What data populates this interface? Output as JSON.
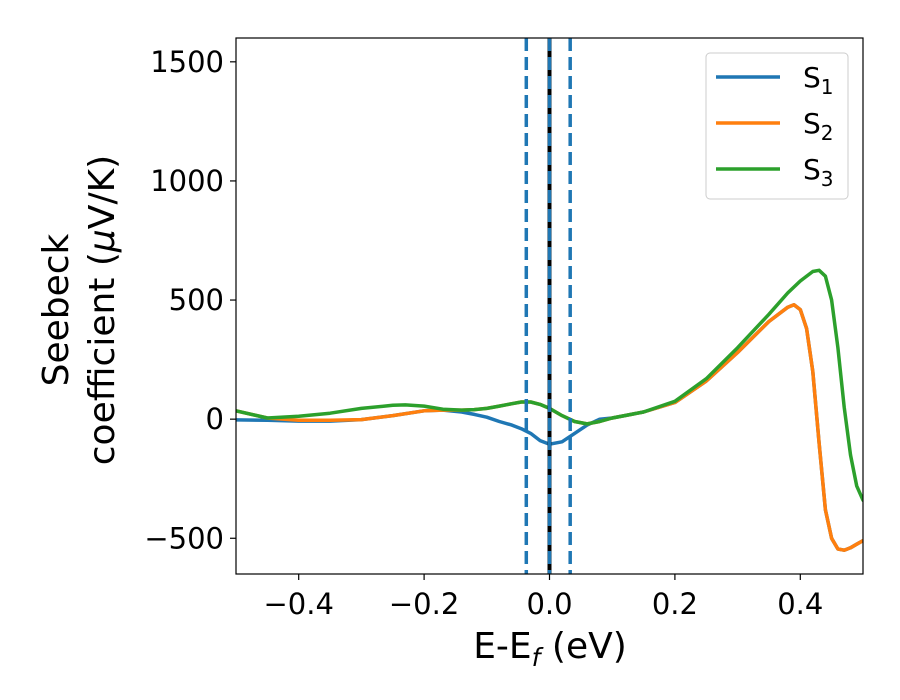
{
  "chart_data": {
    "type": "line",
    "xlabel": "E-E",
    "xlabel_sub": "f",
    "xlabel_unit": " (eV)",
    "ylabel_line1": "Seebeck",
    "ylabel_line2": "coefficient  (",
    "ylabel_mu": "μ",
    "ylabel_unit": "V/K)",
    "xlim": [
      -0.5,
      0.5
    ],
    "ylim": [
      -650,
      1600
    ],
    "xticks": [
      -0.4,
      -0.2,
      0.0,
      0.2,
      0.4
    ],
    "xtick_labels": [
      "−0.4",
      "−0.2",
      "0.0",
      "0.2",
      "0.4"
    ],
    "yticks": [
      -500,
      0,
      500,
      1000,
      1500
    ],
    "ytick_labels": [
      "−500",
      "0",
      "500",
      "1000",
      "1500"
    ],
    "legend_position": "top-right",
    "grid": false,
    "vlines": [
      {
        "x": -0.037,
        "style": "dashed",
        "color": "#1f77b4"
      },
      {
        "x": 0.0,
        "style": "solid",
        "color": "#000000"
      },
      {
        "x": 0.0,
        "style": "dashed",
        "color": "#1f77b4"
      },
      {
        "x": 0.033,
        "style": "dashed",
        "color": "#1f77b4"
      }
    ],
    "series": [
      {
        "name": "S",
        "sub": "1",
        "color": "#1f77b4",
        "x": [
          -0.5,
          -0.45,
          -0.4,
          -0.35,
          -0.3,
          -0.25,
          -0.2,
          -0.17,
          -0.14,
          -0.12,
          -0.1,
          -0.08,
          -0.06,
          -0.045,
          -0.03,
          -0.015,
          0.0,
          0.02,
          0.04,
          0.06,
          0.08,
          0.1,
          0.12,
          0.15,
          0.2,
          0.25,
          0.3,
          0.35,
          0.38,
          0.39,
          0.4,
          0.41,
          0.42,
          0.43,
          0.44,
          0.45,
          0.46,
          0.47,
          0.48,
          0.49,
          0.5
        ],
        "y": [
          -3,
          -5,
          -8,
          -8,
          -2,
          15,
          35,
          38,
          30,
          20,
          8,
          -10,
          -25,
          -40,
          -60,
          -90,
          -105,
          -95,
          -60,
          -25,
          0,
          5,
          15,
          30,
          70,
          160,
          280,
          410,
          470,
          480,
          460,
          380,
          200,
          -100,
          -380,
          -500,
          -545,
          -550,
          -540,
          -525,
          -510
        ]
      },
      {
        "name": "S",
        "sub": "2",
        "color": "#ff7f0e",
        "x": [
          -0.5,
          -0.45,
          -0.4,
          -0.35,
          -0.3,
          -0.25,
          -0.2,
          -0.17,
          -0.14,
          -0.12,
          -0.1,
          -0.08,
          -0.06,
          -0.045,
          -0.03,
          -0.015,
          0.0,
          0.02,
          0.04,
          0.06,
          0.08,
          0.1,
          0.12,
          0.15,
          0.2,
          0.25,
          0.3,
          0.35,
          0.38,
          0.39,
          0.4,
          0.41,
          0.42,
          0.43,
          0.44,
          0.45,
          0.46,
          0.47,
          0.48,
          0.49,
          0.5
        ],
        "y": [
          35,
          5,
          -5,
          -5,
          -2,
          15,
          35,
          38,
          38,
          40,
          45,
          55,
          65,
          72,
          72,
          62,
          45,
          15,
          -10,
          -20,
          -10,
          5,
          15,
          30,
          70,
          160,
          280,
          410,
          470,
          480,
          460,
          380,
          200,
          -100,
          -380,
          -500,
          -545,
          -550,
          -540,
          -525,
          -510
        ]
      },
      {
        "name": "S",
        "sub": "3",
        "color": "#2ca02c",
        "x": [
          -0.5,
          -0.45,
          -0.4,
          -0.35,
          -0.3,
          -0.25,
          -0.23,
          -0.2,
          -0.17,
          -0.14,
          -0.12,
          -0.1,
          -0.08,
          -0.06,
          -0.045,
          -0.03,
          -0.015,
          0.0,
          0.02,
          0.04,
          0.06,
          0.08,
          0.1,
          0.12,
          0.15,
          0.2,
          0.25,
          0.3,
          0.35,
          0.38,
          0.4,
          0.42,
          0.43,
          0.44,
          0.45,
          0.46,
          0.47,
          0.48,
          0.49,
          0.5
        ],
        "y": [
          35,
          5,
          12,
          25,
          45,
          58,
          60,
          55,
          42,
          38,
          40,
          45,
          55,
          65,
          72,
          72,
          62,
          45,
          15,
          -10,
          -20,
          -10,
          5,
          15,
          30,
          75,
          170,
          300,
          440,
          530,
          580,
          620,
          625,
          600,
          500,
          300,
          50,
          -150,
          -280,
          -340
        ]
      }
    ]
  }
}
